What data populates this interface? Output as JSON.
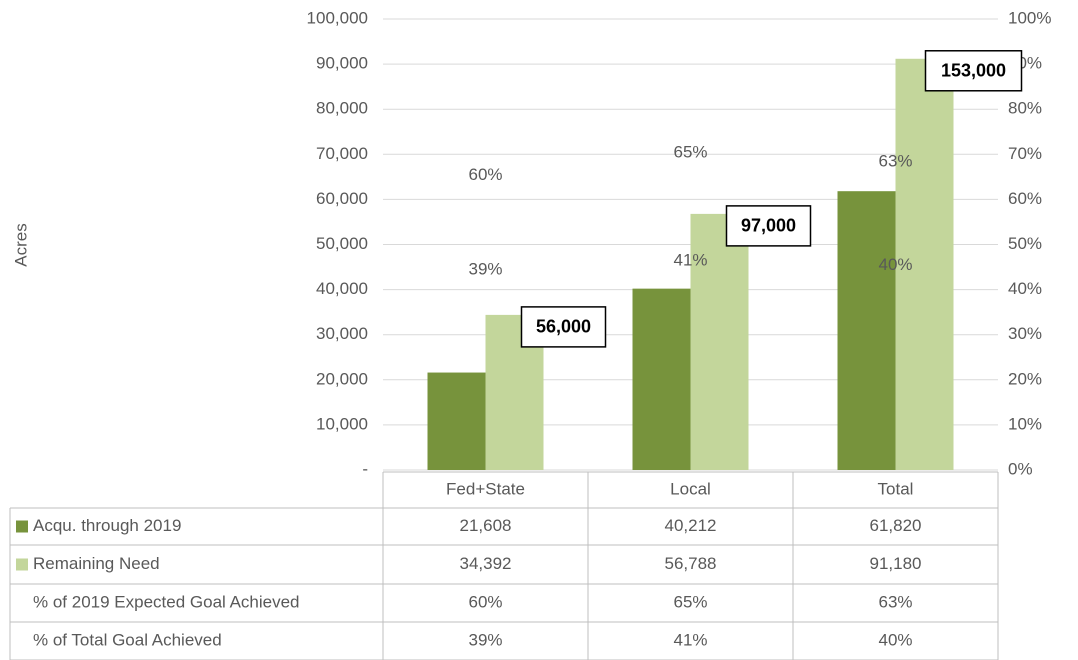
{
  "chart_data": {
    "type": "bar",
    "y_axis_label": "Acres",
    "categories": [
      "Fed+State",
      "Local",
      "Total"
    ],
    "series": [
      {
        "name": "Acqu. through 2019",
        "color": "#77933c",
        "values": [
          21608,
          40212,
          61820
        ],
        "value_labels": [
          "21,608",
          "40,212",
          "61,820"
        ]
      },
      {
        "name": "Remaining Need",
        "color": "#c3d69b",
        "values": [
          34392,
          56788,
          91180
        ],
        "value_labels": [
          "34,392",
          "56,788",
          "91,180"
        ]
      },
      {
        "name": "% of 2019 Expected Goal Achieved",
        "axis": "y2",
        "values": [
          60,
          65,
          63
        ],
        "value_labels": [
          "60%",
          "65%",
          "63%"
        ]
      },
      {
        "name": "% of Total Goal Achieved",
        "axis": "y2",
        "values": [
          39,
          41,
          40
        ],
        "value_labels": [
          "39%",
          "41%",
          "40%"
        ]
      }
    ],
    "totals": {
      "values": [
        56000,
        97000,
        153000
      ],
      "value_labels": [
        "56,000",
        "97,000",
        "153,000"
      ]
    },
    "ylim": [
      0,
      100000
    ],
    "yticks": [
      {
        "value": 0,
        "label": "-"
      },
      {
        "value": 10000,
        "label": "10,000"
      },
      {
        "value": 20000,
        "label": "20,000"
      },
      {
        "value": 30000,
        "label": "30,000"
      },
      {
        "value": 40000,
        "label": "40,000"
      },
      {
        "value": 50000,
        "label": "50,000"
      },
      {
        "value": 60000,
        "label": "60,000"
      },
      {
        "value": 70000,
        "label": "70,000"
      },
      {
        "value": 80000,
        "label": "80,000"
      },
      {
        "value": 90000,
        "label": "90,000"
      },
      {
        "value": 100000,
        "label": "100,000"
      }
    ],
    "y2lim": [
      0,
      100
    ],
    "y2ticks": [
      {
        "value": 0,
        "label": "0%"
      },
      {
        "value": 10,
        "label": "10%"
      },
      {
        "value": 20,
        "label": "20%"
      },
      {
        "value": 30,
        "label": "30%"
      },
      {
        "value": 40,
        "label": "40%"
      },
      {
        "value": 50,
        "label": "50%"
      },
      {
        "value": 60,
        "label": "60%"
      },
      {
        "value": 70,
        "label": "70%"
      },
      {
        "value": 80,
        "label": "80%"
      },
      {
        "value": 90,
        "label": "90%"
      },
      {
        "value": 100,
        "label": "100%"
      }
    ],
    "grid": true,
    "data_table": true
  }
}
